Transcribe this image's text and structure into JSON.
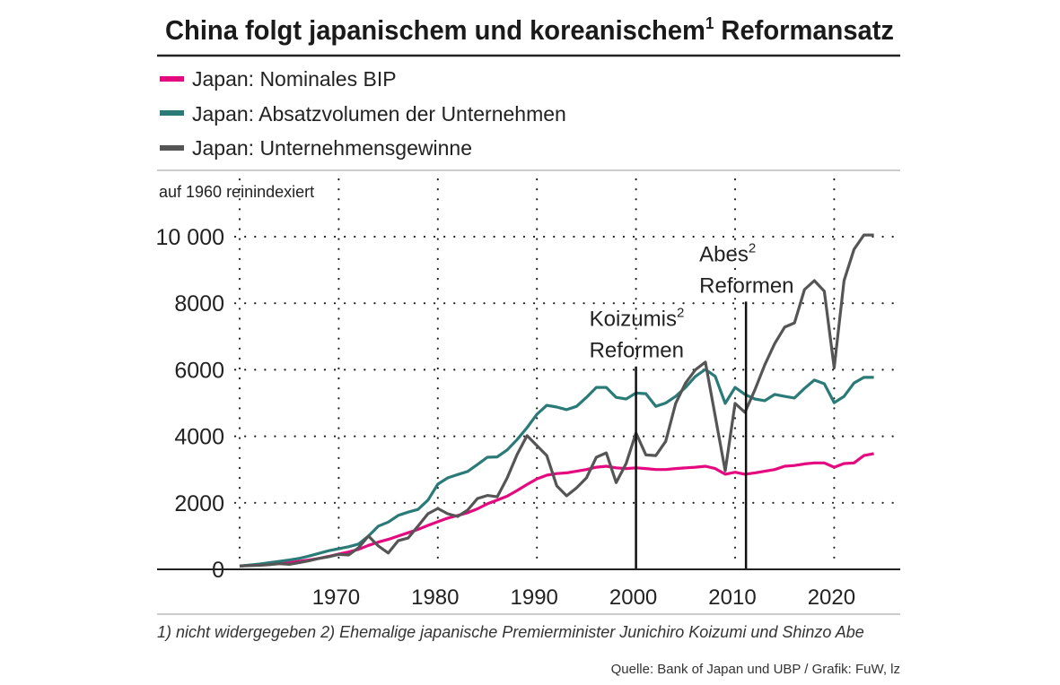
{
  "title": {
    "text": "China folgt japanischem und koreanischem",
    "sup": "1",
    "rest": " Reformansatz"
  },
  "legend": [
    {
      "label": "Japan: Nominales BIP",
      "color": "#e5097f"
    },
    {
      "label": "Japan: Absatzvolumen der Unternehmen",
      "color": "#2a7b78"
    },
    {
      "label": "Japan: Unternehmensgewinne",
      "color": "#555555"
    }
  ],
  "footnote": "1) nicht widergegeben  2) Ehemalige japanische Premierminister Junichiro Koizumi und  Shinzo Abe",
  "source": "Quelle: Bank of Japan und UBP / Grafik: FuW, lz",
  "chart_data": {
    "type": "line",
    "title": "China folgt japanischem und koreanischem¹ Reformansatz",
    "ylabel": "auf 1960 reinindexiert",
    "xlim": [
      1960,
      2026
    ],
    "ylim": [
      0,
      10000
    ],
    "grid": true,
    "legend_placement": "top-left",
    "x_ticks": [
      1970,
      1980,
      1990,
      2000,
      2010,
      2020
    ],
    "x_tick_labels": [
      "1970",
      "1980",
      "1990",
      "2000",
      "2010",
      "2020"
    ],
    "y_ticks": [
      0,
      2000,
      4000,
      6000,
      8000,
      10000
    ],
    "y_tick_labels": [
      "0",
      "2000",
      "4000",
      "6000",
      "8000",
      "10 000"
    ],
    "x_start": 1960,
    "series": [
      {
        "name": "Japan: Nominales BIP",
        "color": "#e5097f",
        "values": [
          100,
          120,
          140,
          160,
          180,
          200,
          240,
          280,
          330,
          390,
          460,
          520,
          600,
          720,
          820,
          900,
          1000,
          1100,
          1200,
          1320,
          1430,
          1540,
          1620,
          1700,
          1820,
          1970,
          2080,
          2200,
          2370,
          2550,
          2720,
          2830,
          2880,
          2900,
          2950,
          3000,
          3070,
          3100,
          3050,
          3030,
          3050,
          3030,
          3000,
          3000,
          3030,
          3050,
          3070,
          3100,
          3030,
          2860,
          2920,
          2860,
          2900,
          2950,
          3000,
          3100,
          3120,
          3170,
          3200,
          3200,
          3070,
          3180,
          3200,
          3420,
          3480
        ]
      },
      {
        "name": "Japan: Absatzvolumen der Unternehmen",
        "color": "#2a7b78",
        "values": [
          100,
          130,
          160,
          200,
          240,
          280,
          330,
          400,
          480,
          560,
          620,
          680,
          760,
          1000,
          1300,
          1420,
          1620,
          1720,
          1800,
          2080,
          2560,
          2750,
          2850,
          2940,
          3150,
          3370,
          3380,
          3590,
          3900,
          4260,
          4660,
          4930,
          4880,
          4800,
          4900,
          5170,
          5470,
          5470,
          5170,
          5120,
          5300,
          5280,
          4900,
          5000,
          5200,
          5470,
          5800,
          6010,
          5800,
          4990,
          5470,
          5260,
          5120,
          5070,
          5260,
          5200,
          5150,
          5440,
          5690,
          5580,
          5010,
          5200,
          5600,
          5770,
          5770
        ]
      },
      {
        "name": "Japan: Unternehmensgewinne",
        "color": "#555555",
        "values": [
          100,
          110,
          120,
          140,
          170,
          150,
          200,
          260,
          330,
          380,
          450,
          430,
          650,
          1000,
          700,
          490,
          860,
          940,
          1300,
          1670,
          1830,
          1670,
          1590,
          1780,
          2130,
          2220,
          2180,
          2750,
          3450,
          4020,
          3720,
          3420,
          2510,
          2210,
          2450,
          2750,
          3370,
          3500,
          2610,
          3180,
          4100,
          3440,
          3420,
          3850,
          4990,
          5600,
          6000,
          6230,
          4600,
          2960,
          4990,
          4720,
          5400,
          6150,
          6790,
          7280,
          7410,
          8410,
          8680,
          8360,
          6060,
          8680,
          9620,
          10050,
          10050
        ]
      }
    ],
    "annotations": [
      {
        "x": 2000,
        "line1": "Koizumis",
        "sup": "2",
        "line2": "Reformen",
        "top_value": 6100
      },
      {
        "x": 2011.1,
        "line1": "Abes",
        "sup": "2",
        "line2": "Reformen",
        "top_value": 8050
      }
    ]
  }
}
